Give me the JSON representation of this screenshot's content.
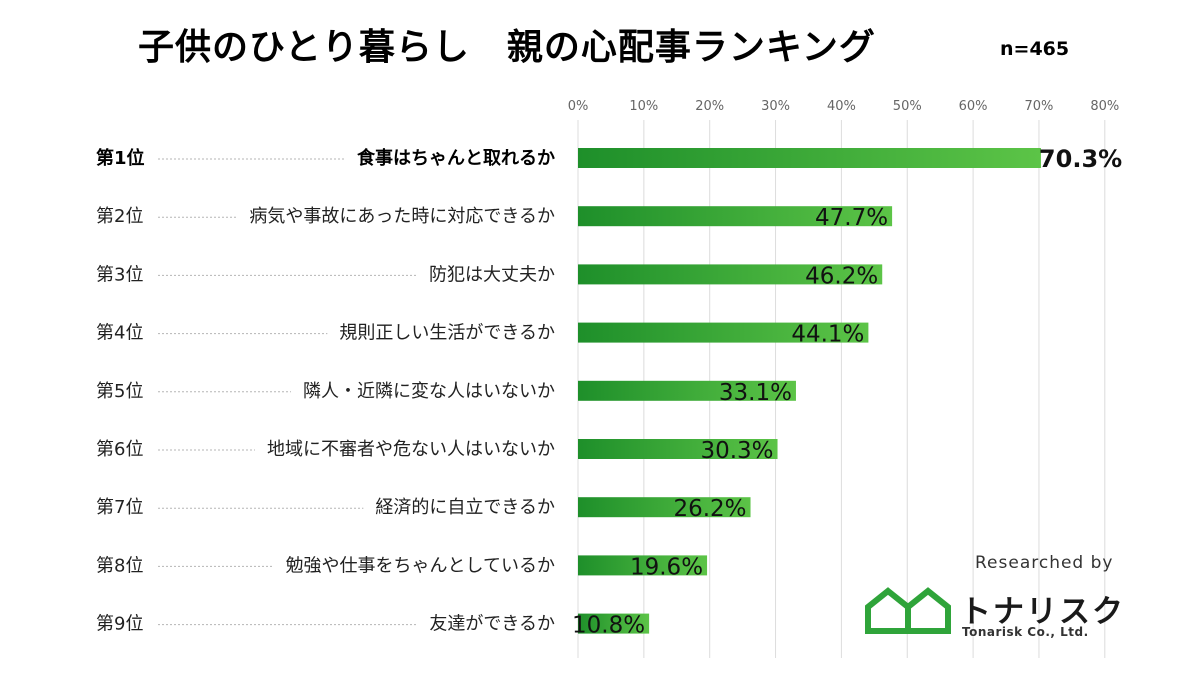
{
  "title": "子供のひとり暮らし　親の心配事ランキング",
  "sample_size": "n=465",
  "chart_data": {
    "type": "bar",
    "orientation": "horizontal",
    "title": "子供のひとり暮らし　親の心配事ランキング",
    "xlim": [
      0,
      80
    ],
    "x_ticks": [
      0,
      10,
      20,
      30,
      40,
      50,
      60,
      70,
      80
    ],
    "x_tick_labels": [
      "0%",
      "10%",
      "20%",
      "30%",
      "40%",
      "50%",
      "60%",
      "70%",
      "80%"
    ],
    "grid": true,
    "unit": "%",
    "ranks": [
      "第1位",
      "第2位",
      "第3位",
      "第4位",
      "第5位",
      "第6位",
      "第7位",
      "第8位",
      "第9位"
    ],
    "categories": [
      "食事はちゃんと取れるか",
      "病気や事故にあった時に対応できるか",
      "防犯は大丈夫か",
      "規則正しい生活ができるか",
      "隣人・近隣に変な人はいないか",
      "地域に不審者や危ない人はいないか",
      "経済的に自立できるか",
      "勉強や仕事をちゃんとしているか",
      "友達ができるか"
    ],
    "values": [
      70.3,
      47.7,
      46.2,
      44.1,
      33.1,
      30.3,
      26.2,
      19.6,
      10.8
    ],
    "value_labels": [
      "70.3%",
      "47.7%",
      "46.2%",
      "44.1%",
      "33.1%",
      "30.3%",
      "26.2%",
      "19.6%",
      "10.8%"
    ],
    "bar_color_start": "#1e8f2a",
    "bar_color_end": "#5cc447"
  },
  "credit": "Researched by",
  "logo": {
    "name": "トナリスク",
    "sub": "Tonarisk Co., Ltd.",
    "icon": "house-outline-icon",
    "color": "#2fa43a"
  }
}
